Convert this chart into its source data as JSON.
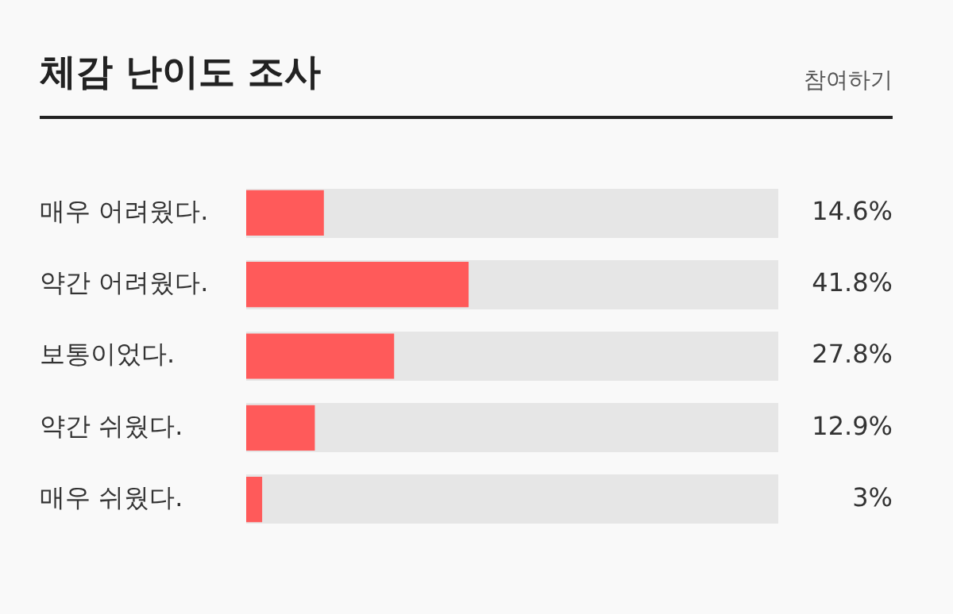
{
  "chart_data": {
    "type": "bar",
    "orientation": "horizontal",
    "title": "체감 난이도 조사",
    "annotations": [
      "참여하기"
    ],
    "categories": [
      "매우 어려웠다.",
      "약간 어려웠다.",
      "보통이었다.",
      "약간 쉬웠다.",
      "매우 쉬웠다."
    ],
    "values": [
      14.6,
      41.8,
      27.8,
      12.9,
      3
    ],
    "value_labels": [
      "14.6%",
      "41.8%",
      "27.8%",
      "12.9%",
      "3%"
    ],
    "color": "#ff5a5a",
    "xlim": [
      0,
      100
    ],
    "tick_labels": "y",
    "legend": false
  }
}
